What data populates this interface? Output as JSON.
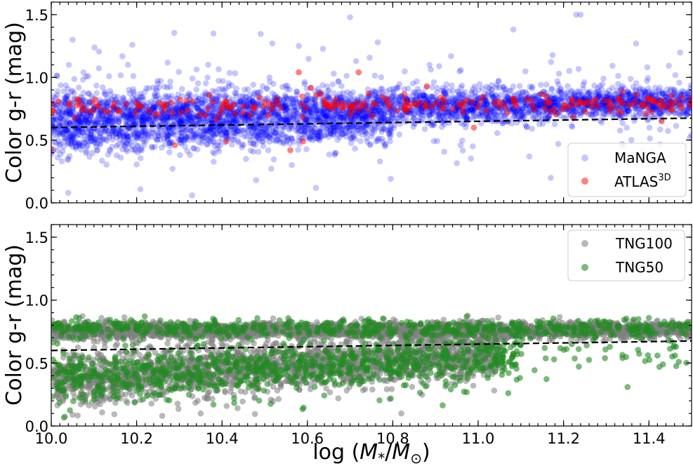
{
  "figure": {
    "xlabel": "log (M*/M⊙)",
    "xlabel_parts": {
      "pre": "log (",
      "m1": "M",
      "sub1": "*",
      "slash": "/",
      "m2": "M",
      "sub2": "⊙",
      "post": ")"
    }
  },
  "chart_data": [
    {
      "type": "scatter",
      "panel": "top",
      "ylabel": "Color g-r (mag)",
      "xlim": [
        10.0,
        11.5
      ],
      "ylim": [
        0.0,
        1.6
      ],
      "xticks": [
        "10.0",
        "10.2",
        "10.4",
        "10.6",
        "10.8",
        "11.0",
        "11.2",
        "11.4"
      ],
      "yticks": [
        "0.0",
        "0.5",
        "1.0",
        "1.5"
      ],
      "legend_position": "lower-right",
      "reference_line": {
        "style": "dashed",
        "color": "#000000",
        "x": [
          10.0,
          11.5
        ],
        "y": [
          0.6,
          0.675
        ]
      },
      "series": [
        {
          "name": "MaNGA",
          "color": "#0000ff",
          "alpha": 0.22,
          "clouds": [
            {
              "x": [
                10.0,
                11.5
              ],
              "n": 3200,
              "mean_start": 0.7,
              "mean_end": 0.81,
              "sd_start": 0.1,
              "sd_end": 0.055
            },
            {
              "x": [
                10.0,
                10.8
              ],
              "n": 900,
              "mean_start": 0.52,
              "mean_end": 0.62,
              "sd_start": 0.08,
              "sd_end": 0.08
            },
            {
              "x": [
                10.0,
                11.5
              ],
              "n": 260,
              "mean_start": 0.8,
              "mean_end": 0.8,
              "sd_start": 0.25,
              "sd_end": 0.2
            }
          ],
          "outliers": [
            [
              10.7,
              1.48
            ],
            [
              11.23,
              1.5
            ],
            [
              11.24,
              1.5
            ],
            [
              10.38,
              1.35
            ],
            [
              10.05,
              1.3
            ],
            [
              10.19,
              1.26
            ],
            [
              10.58,
              1.25
            ],
            [
              11.37,
              1.27
            ],
            [
              10.04,
              0.08
            ],
            [
              10.33,
              0.06
            ],
            [
              10.62,
              0.12
            ],
            [
              10.48,
              0.18
            ],
            [
              11.17,
              0.2
            ],
            [
              10.77,
              0.33
            ],
            [
              11.12,
              0.37
            ]
          ]
        },
        {
          "name": "ATLAS",
          "name_superscript": "3D",
          "color": "#ff0000",
          "alpha": 0.5,
          "clouds": [
            {
              "x": [
                10.0,
                11.5
              ],
              "n": 250,
              "mean_start": 0.76,
              "mean_end": 0.8,
              "sd_start": 0.04,
              "sd_end": 0.04
            }
          ],
          "outliers": [
            [
              10.58,
              1.04
            ],
            [
              10.72,
              1.04
            ],
            [
              10.88,
              0.93
            ],
            [
              10.29,
              0.46
            ],
            [
              10.41,
              0.49
            ],
            [
              10.56,
              0.42
            ],
            [
              10.59,
              0.49
            ],
            [
              10.99,
              0.6
            ],
            [
              10.0,
              0.43
            ],
            [
              11.43,
              0.65
            ]
          ]
        }
      ]
    },
    {
      "type": "scatter",
      "panel": "bottom",
      "ylabel": "Color g-r (mag)",
      "xlim": [
        10.0,
        11.5
      ],
      "ylim": [
        0.0,
        1.6
      ],
      "xticks": [
        "10.0",
        "10.2",
        "10.4",
        "10.6",
        "10.8",
        "11.0",
        "11.2",
        "11.4"
      ],
      "yticks": [
        "0.0",
        "0.5",
        "1.0",
        "1.5"
      ],
      "legend_position": "upper-right",
      "reference_line": {
        "style": "dashed",
        "color": "#000000",
        "x": [
          10.0,
          11.5
        ],
        "y": [
          0.6,
          0.675
        ]
      },
      "series": [
        {
          "name": "TNG100",
          "color": "#808080",
          "alpha": 0.55,
          "clouds": [
            {
              "x": [
                10.0,
                11.5
              ],
              "n": 2400,
              "mean_start": 0.76,
              "mean_end": 0.76,
              "sd_start": 0.035,
              "sd_end": 0.03
            },
            {
              "x": [
                10.0,
                11.05
              ],
              "n": 1900,
              "mean_start": 0.37,
              "mean_end": 0.58,
              "sd_start": 0.11,
              "sd_end": 0.1
            }
          ],
          "outliers": [
            [
              10.82,
              0.1
            ],
            [
              10.05,
              0.09
            ],
            [
              10.26,
              0.08
            ],
            [
              10.35,
              0.1
            ]
          ]
        },
        {
          "name": "TNG50",
          "color": "#228b22",
          "alpha": 0.6,
          "clouds": [
            {
              "x": [
                10.0,
                11.5
              ],
              "n": 600,
              "mean_start": 0.78,
              "mean_end": 0.77,
              "sd_start": 0.04,
              "sd_end": 0.035
            },
            {
              "x": [
                10.0,
                11.1
              ],
              "n": 900,
              "mean_start": 0.37,
              "mean_end": 0.55,
              "sd_start": 0.1,
              "sd_end": 0.1
            },
            {
              "x": [
                10.7,
                11.5
              ],
              "n": 80,
              "mean_start": 0.55,
              "mean_end": 0.55,
              "sd_start": 0.1,
              "sd_end": 0.1
            }
          ],
          "outliers": [
            [
              11.35,
              0.31
            ],
            [
              11.47,
              0.51
            ],
            [
              11.42,
              0.56
            ],
            [
              10.38,
              0.17
            ]
          ]
        }
      ]
    }
  ]
}
